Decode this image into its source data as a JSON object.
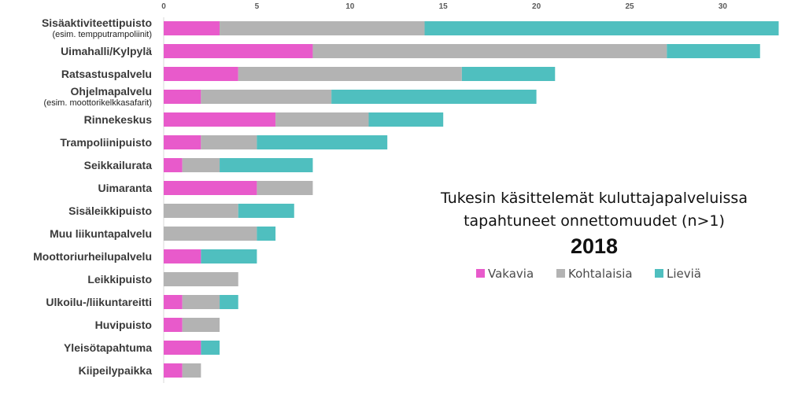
{
  "chart_data": {
    "type": "bar",
    "orientation": "horizontal",
    "stacked": true,
    "title_lines": [
      "Tukesin käsittelemät kuluttajapalveluissa",
      "tapahtuneet onnettomuudet (n>1)"
    ],
    "year": "2018",
    "x_ticks": [
      "0",
      "5",
      "10",
      "15",
      "20",
      "25",
      "30"
    ],
    "xlim": [
      0,
      33
    ],
    "grid": false,
    "legend_position": "right",
    "categories": [
      {
        "label": "Sisäaktiviteettipuisto",
        "sub": "(esim. tempputrampoliinit)"
      },
      {
        "label": "Uimahalli/Kylpylä"
      },
      {
        "label": "Ratsastuspalvelu"
      },
      {
        "label": "Ohjelmapalvelu",
        "sub": "(esim. moottorikelkkasafarit)"
      },
      {
        "label": "Rinnekeskus"
      },
      {
        "label": "Trampoliinipuisto"
      },
      {
        "label": "Seikkailurata"
      },
      {
        "label": "Uimaranta"
      },
      {
        "label": "Sisäleikkipuisto"
      },
      {
        "label": "Muu liikuntapalvelu"
      },
      {
        "label": "Moottoriurheilupalvelu"
      },
      {
        "label": "Leikkipuisto"
      },
      {
        "label": "Ulkoilu-/liikuntareitti"
      },
      {
        "label": "Huvipuisto"
      },
      {
        "label": "Yleisötapahtuma"
      },
      {
        "label": "Kiipeilypaikka"
      }
    ],
    "series": [
      {
        "name": "Vakavia",
        "color": "#E85ACB",
        "values": [
          3,
          8,
          4,
          2,
          6,
          2,
          1,
          5,
          0,
          0,
          2,
          0,
          1,
          1,
          2,
          1
        ]
      },
      {
        "name": "Kohtalaisia",
        "color": "#B3B3B3",
        "values": [
          11,
          19,
          12,
          7,
          5,
          3,
          2,
          3,
          4,
          5,
          0,
          4,
          2,
          2,
          0,
          1
        ]
      },
      {
        "name": "Lieviä",
        "color": "#4FBFBF",
        "values": [
          19,
          5,
          5,
          11,
          4,
          7,
          5,
          0,
          3,
          1,
          3,
          0,
          1,
          0,
          1,
          0
        ]
      }
    ]
  }
}
